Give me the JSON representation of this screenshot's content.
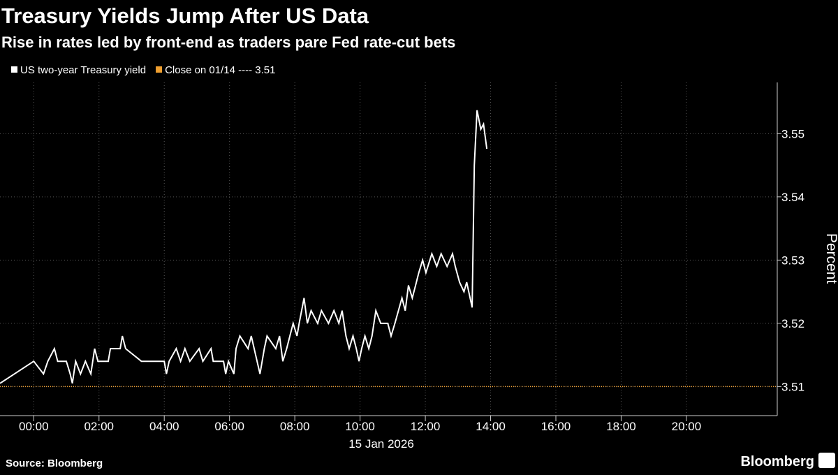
{
  "chart_data": {
    "type": "line",
    "title": "Treasury Yields Jump After US Data",
    "subtitle": "Rise in rates led by front-end as traders pare Fed rate-cut bets",
    "y_label": "Percent",
    "x_label": "15 Jan 2026",
    "source": "Source: Bloomberg",
    "brand": "Bloomberg",
    "grid": true,
    "x": [
      -62,
      0,
      18,
      26,
      38,
      44,
      60,
      67,
      71,
      77,
      86,
      95,
      105,
      112,
      118,
      137,
      141,
      159,
      163,
      169,
      198,
      240,
      244,
      249,
      262,
      270,
      278,
      287,
      304,
      311,
      326,
      330,
      349,
      353,
      358,
      368,
      372,
      379,
      394,
      400,
      416,
      424,
      429,
      445,
      452,
      458,
      465,
      471,
      477,
      484,
      488,
      497,
      503,
      510,
      522,
      529,
      542,
      552,
      561,
      567,
      574,
      580,
      587,
      593,
      598,
      603,
      609,
      616,
      622,
      629,
      638,
      651,
      657,
      664,
      677,
      683,
      689,
      696,
      702,
      708,
      715,
      721,
      732,
      741,
      749,
      760,
      770,
      775,
      783,
      791,
      796,
      801,
      806,
      810,
      815,
      822,
      827,
      833
    ],
    "series": [
      {
        "name": "US two-year Treasury yield",
        "color": "#ffffff",
        "values": [
          3.5105,
          3.514,
          3.512,
          3.514,
          3.516,
          3.514,
          3.514,
          3.512,
          3.5105,
          3.514,
          3.512,
          3.514,
          3.512,
          3.516,
          3.514,
          3.514,
          3.516,
          3.516,
          3.518,
          3.516,
          3.514,
          3.514,
          3.512,
          3.514,
          3.516,
          3.514,
          3.516,
          3.514,
          3.516,
          3.514,
          3.516,
          3.514,
          3.514,
          3.512,
          3.514,
          3.512,
          3.516,
          3.518,
          3.516,
          3.518,
          3.512,
          3.516,
          3.518,
          3.516,
          3.518,
          3.514,
          3.516,
          3.518,
          3.52,
          3.518,
          3.52,
          3.524,
          3.52,
          3.522,
          3.52,
          3.522,
          3.52,
          3.522,
          3.52,
          3.522,
          3.518,
          3.516,
          3.518,
          3.516,
          3.514,
          3.516,
          3.518,
          3.516,
          3.518,
          3.522,
          3.52,
          3.52,
          3.518,
          3.52,
          3.524,
          3.522,
          3.526,
          3.524,
          3.526,
          3.528,
          3.53,
          3.528,
          3.531,
          3.529,
          3.531,
          3.529,
          3.531,
          3.529,
          3.5265,
          3.525,
          3.5265,
          3.5245,
          3.5225,
          3.545,
          3.5537,
          3.5507,
          3.5515,
          3.5476
        ]
      }
    ],
    "reference_line": {
      "name": "Close on 01/14 ---- 3.51",
      "value": 3.51,
      "color": "#f0a030"
    },
    "xlim": [
      -62,
      1367
    ],
    "xticks": [
      {
        "value": 0,
        "label": "00:00"
      },
      {
        "value": 120,
        "label": "02:00"
      },
      {
        "value": 240,
        "label": "04:00"
      },
      {
        "value": 360,
        "label": "06:00"
      },
      {
        "value": 480,
        "label": "08:00"
      },
      {
        "value": 600,
        "label": "10:00"
      },
      {
        "value": 720,
        "label": "12:00"
      },
      {
        "value": 840,
        "label": "14:00"
      },
      {
        "value": 960,
        "label": "16:00"
      },
      {
        "value": 1080,
        "label": "18:00"
      },
      {
        "value": 1200,
        "label": "20:00"
      }
    ],
    "ylim": [
      3.5054,
      3.5581
    ],
    "yticks": [
      3.51,
      3.52,
      3.53,
      3.54,
      3.55
    ]
  }
}
